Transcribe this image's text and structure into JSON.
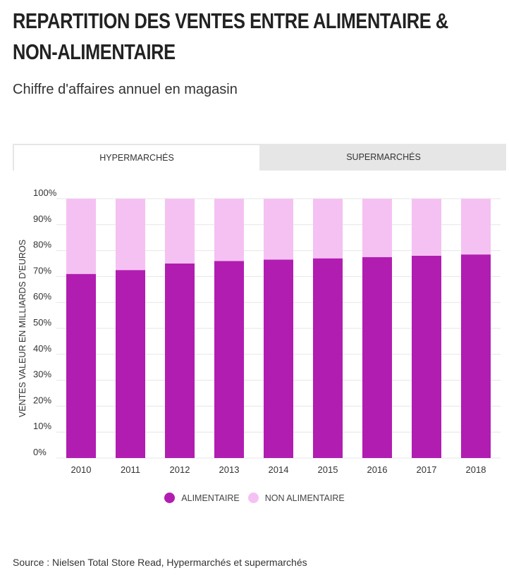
{
  "header": {
    "title": "REPARTITION DES VENTES ENTRE ALIMENTAIRE & NON-ALIMENTAIRE",
    "subtitle": "Chiffre d'affaires annuel en magasin"
  },
  "tabs": [
    {
      "label": "HYPERMARCHÉS",
      "active": true
    },
    {
      "label": "SUPERMARCHÉS",
      "active": false
    }
  ],
  "colors": {
    "alimentaire": "#b11db1",
    "non_alimentaire": "#f5c1f2",
    "grid": "#e6e6e6",
    "tab_inactive": "#e6e6e6"
  },
  "chart_data": {
    "type": "bar",
    "stacked": true,
    "title": "",
    "xlabel": "",
    "ylabel": "VENTES VALEUR EN MILLIARDS D'EUROS",
    "ylim": [
      0,
      100
    ],
    "y_ticks": [
      "0%",
      "10%",
      "20%",
      "30%",
      "40%",
      "50%",
      "60%",
      "70%",
      "80%",
      "90%",
      "100%"
    ],
    "categories": [
      "2010",
      "2011",
      "2012",
      "2013",
      "2014",
      "2015",
      "2016",
      "2017",
      "2018"
    ],
    "series": [
      {
        "name": "ALIMENTAIRE",
        "values": [
          71,
          72.5,
          75,
          76,
          76.5,
          77,
          77.5,
          78,
          78.5
        ]
      },
      {
        "name": "NON ALIMENTAIRE",
        "values": [
          29,
          27.5,
          25,
          24,
          23.5,
          23,
          22.5,
          22,
          21.5
        ]
      }
    ],
    "legend_position": "bottom"
  },
  "footer": {
    "source": "Source : Nielsen Total Store Read, Hypermarchés et supermarchés"
  }
}
